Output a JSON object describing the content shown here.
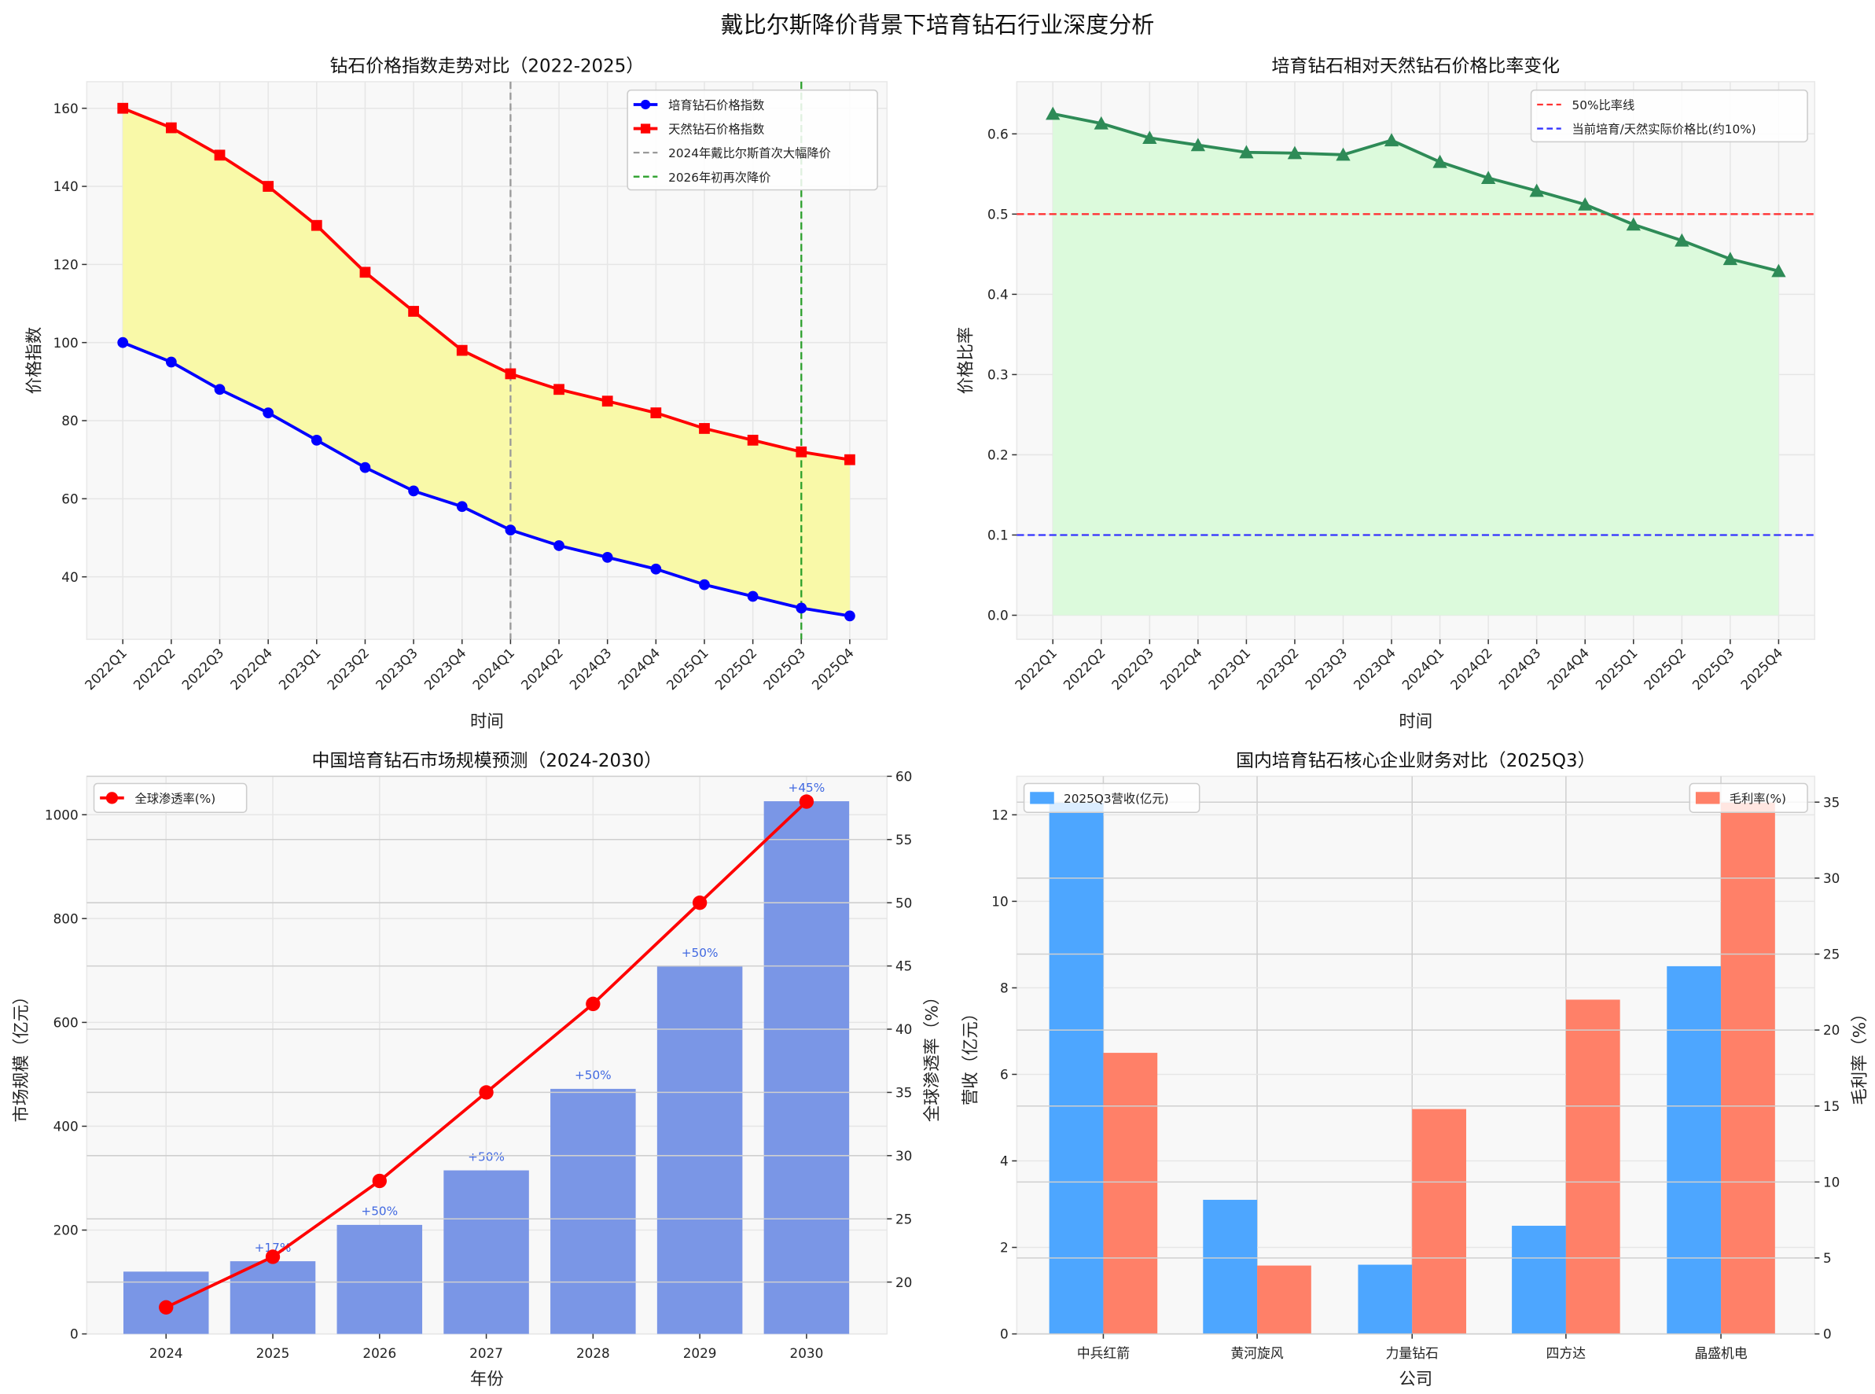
{
  "suptitle": "戴比尔斯降价背景下培育钻石行业深度分析",
  "colors": {
    "lab": "#0000ff",
    "natural": "#ff0000",
    "fill1": "#f9f9a8",
    "ratio": "#2e8b57",
    "fill2": "#dcfadc",
    "bar": "#7a96e6",
    "pen": "#ff0000",
    "rev": "#4da6ff",
    "margin": "#ff8068",
    "axis_left3": "#4169e1",
    "axis_left4": "#1e90ff",
    "axis_right4": "#ff6347"
  },
  "chart_data": [
    {
      "type": "line",
      "title": "钻石价格指数走势对比（2022-2025）",
      "xlabel": "时间",
      "ylabel": "价格指数",
      "categories": [
        "2022Q1",
        "2022Q2",
        "2022Q3",
        "2022Q4",
        "2023Q1",
        "2023Q2",
        "2023Q3",
        "2023Q4",
        "2024Q1",
        "2024Q2",
        "2024Q3",
        "2024Q4",
        "2025Q1",
        "2025Q2",
        "2025Q3",
        "2025Q4"
      ],
      "series": [
        {
          "name": "培育钻石价格指数",
          "values": [
            100,
            95,
            88,
            82,
            75,
            68,
            62,
            58,
            52,
            48,
            45,
            42,
            38,
            35,
            32,
            30
          ]
        },
        {
          "name": "天然钻石价格指数",
          "values": [
            160,
            155,
            148,
            140,
            130,
            118,
            108,
            98,
            92,
            88,
            85,
            82,
            78,
            75,
            72,
            70
          ]
        }
      ],
      "vlines": [
        {
          "name": "2024年戴比尔斯首次大幅降价",
          "at": "2024Q1",
          "color": "#999999"
        },
        {
          "name": "2026年初再次降价",
          "at": "2025Q3",
          "color": "#2ca02c"
        }
      ],
      "yticks": [
        40,
        60,
        80,
        100,
        120,
        140,
        160
      ],
      "ylim": [
        24,
        166.8
      ],
      "grid": true,
      "legend": "top-right"
    },
    {
      "type": "area",
      "title": "培育钻石相对天然钻石价格比率变化",
      "xlabel": "时间",
      "ylabel": "价格比率",
      "categories": [
        "2022Q1",
        "2022Q2",
        "2022Q3",
        "2022Q4",
        "2023Q1",
        "2023Q2",
        "2023Q3",
        "2023Q4",
        "2024Q1",
        "2024Q2",
        "2024Q3",
        "2024Q4",
        "2025Q1",
        "2025Q2",
        "2025Q3",
        "2025Q4"
      ],
      "values": [
        0.625,
        0.613,
        0.595,
        0.586,
        0.577,
        0.576,
        0.574,
        0.592,
        0.565,
        0.545,
        0.529,
        0.512,
        0.487,
        0.467,
        0.444,
        0.429
      ],
      "hlines": [
        {
          "name": "50%比率线",
          "value": 0.5,
          "color": "#ff3333"
        },
        {
          "name": "当前培育/天然实际价格比(约10%)",
          "value": 0.1,
          "color": "#3333ff"
        }
      ],
      "yticks": [
        "0.0",
        "0.1",
        "0.2",
        "0.3",
        "0.4",
        "0.5",
        "0.6"
      ],
      "ylim": [
        -0.03,
        0.665
      ],
      "grid": true,
      "legend": "top-right"
    },
    {
      "type": "bar",
      "title": "中国培育钻石市场规模预测（2024-2030）",
      "xlabel": "年份",
      "ylabel": "市场规模（亿元）",
      "y2label": "全球渗透率（%）",
      "categories": [
        "2024",
        "2025",
        "2026",
        "2027",
        "2028",
        "2029",
        "2030"
      ],
      "values": [
        120,
        140,
        210,
        315,
        472,
        708,
        1026
      ],
      "bar_labels": [
        "",
        "+17%",
        "+50%",
        "+50%",
        "+50%",
        "+50%",
        "+45%"
      ],
      "line_series": {
        "name": "全球渗透率(%)",
        "values": [
          18,
          22,
          28,
          35,
          42,
          50,
          58
        ]
      },
      "yticks": [
        0,
        200,
        400,
        600,
        800,
        1000
      ],
      "y2ticks": [
        20,
        25,
        30,
        35,
        40,
        45,
        50,
        55,
        60
      ],
      "ylim": [
        0,
        1074
      ],
      "y2lim": [
        15.9,
        60
      ],
      "grid": true,
      "legend": "top-left"
    },
    {
      "type": "bar",
      "title": "国内培育钻石核心企业财务对比（2025Q3）",
      "xlabel": "公司",
      "ylabel": "营收（亿元）",
      "y2label": "毛利率（%）",
      "categories": [
        "中兵红箭",
        "黄河旋风",
        "力量钻石",
        "四方达",
        "晶盛机电"
      ],
      "series": [
        {
          "name": "2025Q3营收(亿元)",
          "values": [
            12.3,
            3.1,
            1.6,
            2.5,
            8.5
          ]
        },
        {
          "name": "毛利率(%)",
          "values": [
            18.5,
            4.5,
            14.8,
            22,
            35
          ]
        }
      ],
      "yticks": [
        0,
        2,
        4,
        6,
        8,
        10,
        12
      ],
      "y2ticks": [
        0,
        5,
        10,
        15,
        20,
        25,
        30,
        35
      ],
      "ylim": [
        0,
        12.89
      ],
      "y2lim": [
        0,
        36.7
      ],
      "grid": true,
      "legend": "top-left / top-right"
    }
  ]
}
